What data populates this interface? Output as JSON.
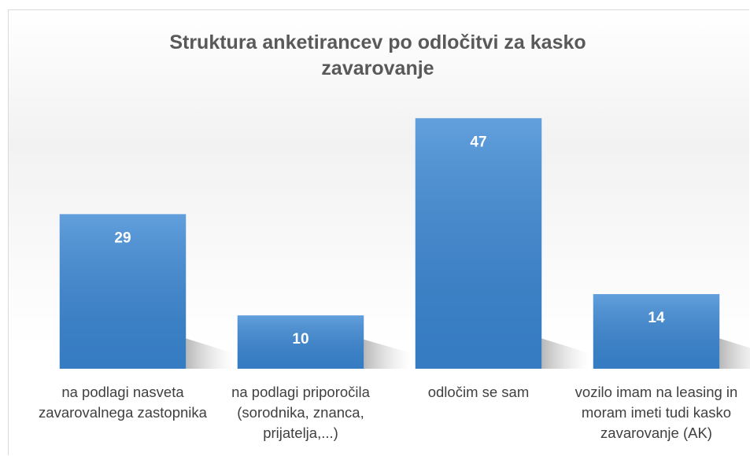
{
  "chart_data": {
    "type": "bar",
    "title": "Struktura anketirancev po odločitvi za kasko zavarovanje",
    "categories": [
      "na podlagi nasveta zavarovalnega zastopnika",
      "na podlagi priporočila (sorodnika, znanca, prijatelja,...)",
      "odločim se sam",
      "vozilo imam na leasing in moram imeti tudi kasko zavarovanje (AK)"
    ],
    "values": [
      29,
      10,
      47,
      14
    ],
    "color": "#3a87d4",
    "ylim": [
      0,
      50
    ]
  }
}
